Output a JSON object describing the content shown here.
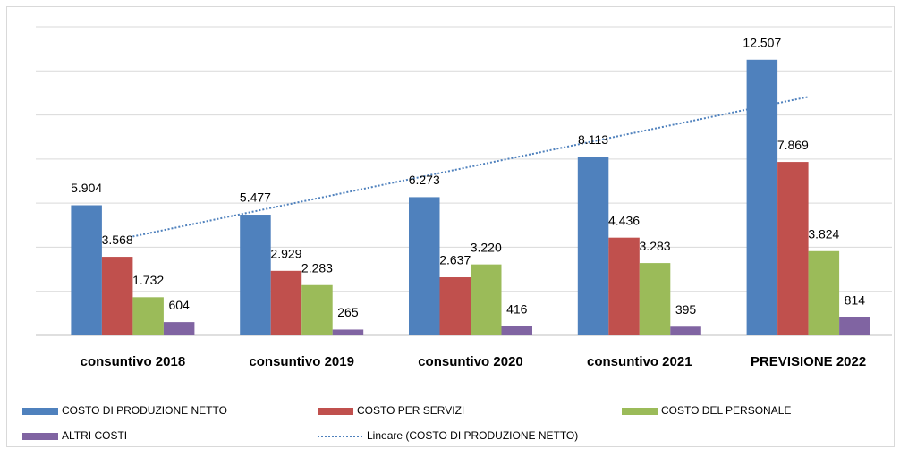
{
  "chart_data": {
    "type": "bar",
    "categories": [
      "consuntivo 2018",
      "consuntivo 2019",
      "consuntivo 2020",
      "consuntivo 2021",
      "PREVISIONE 2022"
    ],
    "series": [
      {
        "name": "COSTO DI PRODUZIONE NETTO",
        "color": "#4f81bd",
        "values": [
          5904,
          5477,
          6273,
          8113,
          12507
        ],
        "value_labels": [
          "5.904",
          "5.477",
          "6.273",
          "8.113",
          "12.507"
        ]
      },
      {
        "name": "COSTO PER SERVIZI",
        "color": "#c0504d",
        "values": [
          3568,
          2929,
          2637,
          4436,
          7869
        ],
        "value_labels": [
          "3.568",
          "2.929",
          "2.637",
          "4.436",
          "7.869"
        ]
      },
      {
        "name": "COSTO DEL PERSONALE",
        "color": "#9bbb59",
        "values": [
          1732,
          2283,
          3220,
          3283,
          3824
        ],
        "value_labels": [
          "1.732",
          "2.283",
          "3.220",
          "3.283",
          "3.824"
        ]
      },
      {
        "name": "ALTRI COSTI",
        "color": "#8064a2",
        "values": [
          604,
          265,
          416,
          395,
          814
        ]
      }
    ],
    "trendline": {
      "name": "Lineare (COSTO DI PRODUZIONE NETTO)",
      "color": "#4f81bd",
      "of_series": 0,
      "kind": "linear"
    },
    "ylim": [
      0,
      14000
    ],
    "yticks": [
      0,
      2000,
      4000,
      6000,
      8000,
      10000,
      12000,
      14000
    ],
    "grid": true,
    "legend": "bottom"
  }
}
